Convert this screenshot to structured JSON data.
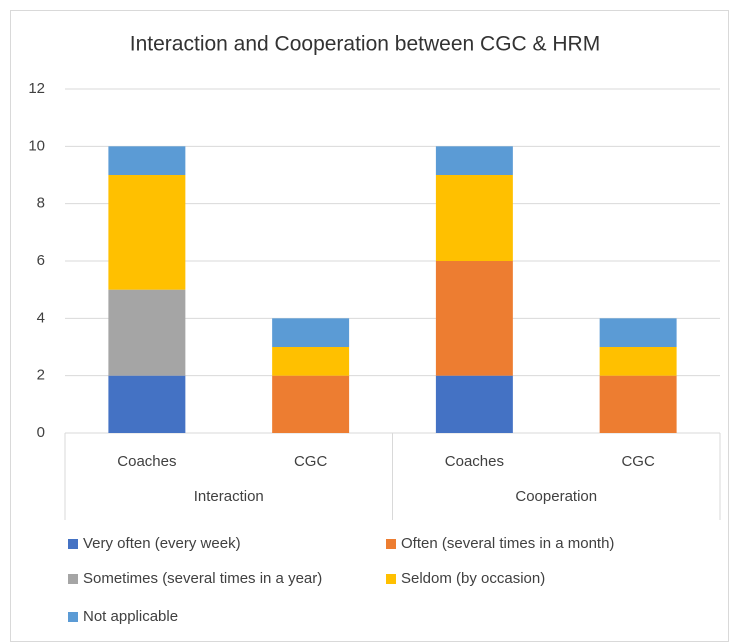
{
  "chart_data": {
    "type": "bar",
    "stacked": true,
    "title": "Interaction and Cooperation between CGC & HRM",
    "groups": [
      {
        "name": "Interaction",
        "categories": [
          "Coaches",
          "CGC"
        ]
      },
      {
        "name": "Cooperation",
        "categories": [
          "Coaches",
          "CGC"
        ]
      }
    ],
    "series": [
      {
        "name": "Very often (every week)",
        "color": "#4472c4",
        "values": [
          2,
          0,
          2,
          0
        ]
      },
      {
        "name": "Often (several times in a month)",
        "color": "#ed7d31",
        "values": [
          0,
          2,
          4,
          2
        ]
      },
      {
        "name": "Sometimes (several times in a year)",
        "color": "#a5a5a5",
        "values": [
          3,
          0,
          0,
          0
        ]
      },
      {
        "name": "Seldom (by occasion)",
        "color": "#ffc000",
        "values": [
          4,
          1,
          3,
          1
        ]
      },
      {
        "name": "Not applicable",
        "color": "#5b9bd5",
        "values": [
          1,
          1,
          1,
          1
        ]
      }
    ],
    "ylim": [
      0,
      12
    ],
    "yticks": [
      0,
      2,
      4,
      6,
      8,
      10,
      12
    ],
    "grid": true,
    "legend": "bottom"
  }
}
